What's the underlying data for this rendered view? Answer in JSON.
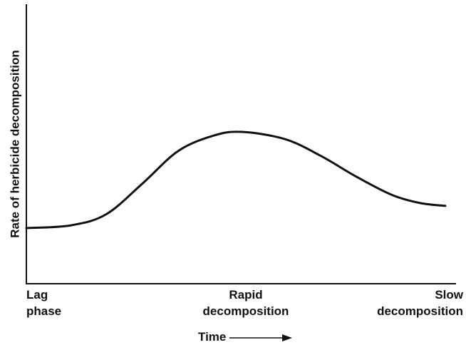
{
  "chart_data": {
    "type": "line",
    "x_label": "Time",
    "y_label": "Rate of herbicide decomposition",
    "categories": [
      [
        "Lag",
        "phase"
      ],
      [
        "Rapid",
        "decomposition"
      ],
      [
        "Slow",
        "decomposition"
      ]
    ],
    "x": [
      0,
      10.4,
      18.6,
      27,
      35.3,
      43.6,
      50.2,
      60.2,
      68.5,
      76.8,
      85,
      91.7,
      97.5
    ],
    "series": [
      {
        "color": "#111111",
        "values": [
          20,
          21,
          25,
          36,
          47.7,
          53.3,
          54.6,
          52,
          46,
          38.5,
          32,
          29,
          28
        ]
      }
    ],
    "xlim": [
      0,
      100
    ],
    "ylim": [
      0,
      100
    ]
  }
}
